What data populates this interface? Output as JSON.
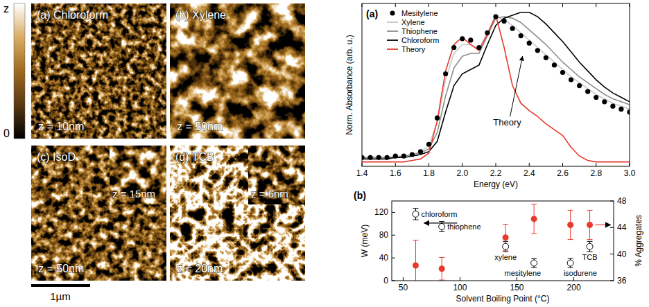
{
  "images": {
    "colorbar": {
      "top_label": "z",
      "bottom_label": "0"
    },
    "panels": [
      {
        "label": "(a) Chloroform",
        "z": "z = 10nm"
      },
      {
        "label": "(b) Xylene",
        "z": "z = 50nm"
      },
      {
        "label": "(c) IsoD",
        "z": "z = 50nm",
        "inset_z": "z = 15nm"
      },
      {
        "label": "(d) TCB",
        "z": "z = 20nm",
        "inset_z": "z = 6nm"
      }
    ],
    "scale_bar": "1µm"
  },
  "chart_data": [
    {
      "type": "line",
      "panel_label": "(a)",
      "x_label": "Energy (eV)",
      "y_label": "Norm. Absorbance (arb. u.)",
      "x": [
        1.4,
        1.45,
        1.5,
        1.55,
        1.6,
        1.65,
        1.7,
        1.75,
        1.8,
        1.85,
        1.9,
        1.95,
        2.0,
        2.05,
        2.1,
        2.15,
        2.2,
        2.25,
        2.3,
        2.35,
        2.4,
        2.45,
        2.5,
        2.55,
        2.6,
        2.65,
        2.7,
        2.75,
        2.8,
        2.85,
        2.9,
        2.95,
        3.0
      ],
      "xlim": [
        1.4,
        3.0
      ],
      "xticks": [
        1.4,
        1.6,
        1.8,
        {
          "value": 2,
          "label": "2.0"
        },
        2.2,
        2.4,
        2.6,
        2.8,
        {
          "value": 3,
          "label": "3.0"
        }
      ],
      "ylim": [
        -0.03,
        1.08
      ],
      "tick_labels": "x",
      "legend": "upper left",
      "series": [
        {
          "name": "Mesitylene",
          "color": "#000000",
          "marker": "circle",
          "line_style": "none",
          "values": [
            0.03,
            0.03,
            0.03,
            0.03,
            0.04,
            0.04,
            0.05,
            0.07,
            0.12,
            0.3,
            0.6,
            0.78,
            0.84,
            0.83,
            0.78,
            0.88,
            0.99,
            0.96,
            0.91,
            0.86,
            0.81,
            0.76,
            0.71,
            0.66,
            0.61,
            0.56,
            0.52,
            0.48,
            0.44,
            0.41,
            0.38,
            0.36,
            0.34
          ]
        },
        {
          "name": "Xylene",
          "color": "#c8c8c8",
          "line_style": "solid",
          "values": [
            0.03,
            0.03,
            0.03,
            0.03,
            0.04,
            0.04,
            0.05,
            0.07,
            0.11,
            0.27,
            0.56,
            0.74,
            0.8,
            0.8,
            0.77,
            0.88,
            0.99,
            0.97,
            0.93,
            0.88,
            0.83,
            0.78,
            0.73,
            0.68,
            0.63,
            0.58,
            0.54,
            0.5,
            0.46,
            0.43,
            0.4,
            0.38,
            0.36
          ]
        },
        {
          "name": "Thiophene",
          "color": "#8c8c8c",
          "line_style": "solid",
          "values": [
            0.03,
            0.03,
            0.03,
            0.03,
            0.03,
            0.04,
            0.05,
            0.06,
            0.09,
            0.2,
            0.45,
            0.64,
            0.72,
            0.74,
            0.74,
            0.86,
            0.98,
            0.99,
            0.98,
            0.95,
            0.9,
            0.85,
            0.8,
            0.74,
            0.68,
            0.63,
            0.58,
            0.54,
            0.5,
            0.46,
            0.43,
            0.41,
            0.39
          ]
        },
        {
          "name": "Chloroform",
          "color": "#000000",
          "line_style": "solid",
          "values": [
            0.02,
            0.02,
            0.02,
            0.02,
            0.03,
            0.03,
            0.04,
            0.05,
            0.07,
            0.14,
            0.34,
            0.52,
            0.6,
            0.63,
            0.66,
            0.8,
            0.93,
            0.98,
            1.0,
            1.02,
            1.02,
            0.99,
            0.94,
            0.88,
            0.82,
            0.75,
            0.68,
            0.62,
            0.56,
            0.51,
            0.47,
            0.44,
            0.41
          ]
        },
        {
          "name": "Theory",
          "color": "#e8392c",
          "line_style": "solid",
          "values": [
            0,
            0,
            0,
            0,
            0,
            0,
            0.01,
            0.02,
            0.06,
            0.28,
            0.62,
            0.8,
            0.85,
            0.8,
            0.76,
            0.87,
            1.0,
            0.78,
            0.52,
            0.4,
            0.35,
            0.31,
            0.26,
            0.22,
            0.18,
            0.1,
            0.04,
            0.01,
            0,
            0,
            0,
            0,
            0
          ]
        }
      ],
      "annotations": [
        {
          "text": "Theory",
          "x": 2.36,
          "y": 0.72
        }
      ]
    },
    {
      "type": "scatter",
      "panel_label": "(b)",
      "x_label": "Solvent Boiling Point (°C)",
      "y_label": "W (meV)",
      "y2_label": "% Aggregates",
      "x": [
        61,
        84,
        140,
        165,
        197,
        214
      ],
      "xlim": [
        40,
        235
      ],
      "xticks": [
        50,
        100,
        150,
        200
      ],
      "ylim": [
        0,
        140
      ],
      "yticks": [
        0,
        40,
        80,
        120
      ],
      "y2lim": [
        36,
        48
      ],
      "y2ticks": [
        36,
        40,
        44,
        48
      ],
      "point_labels": [
        "chloroform",
        "thiophene",
        "xylene",
        "mesitylene",
        "isodurene",
        "TCB"
      ],
      "series": [
        {
          "axis": "y",
          "color": "#000000",
          "marker": "open-circle",
          "values": [
            117,
            95,
            60,
            31,
            31,
            60
          ],
          "errors": [
            10,
            9,
            9,
            8,
            8,
            9
          ]
        },
        {
          "axis": "y2",
          "color": "#e8392c",
          "marker": "circle",
          "values": [
            38.3,
            37.8,
            42.5,
            45.3,
            44.4,
            44.4
          ],
          "errors": [
            3.8,
            1.7,
            2,
            2.2,
            2.2,
            2.2
          ]
        }
      ]
    }
  ]
}
